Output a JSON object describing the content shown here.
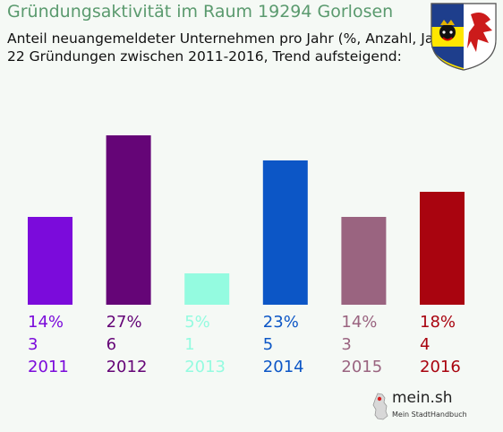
{
  "header": {
    "title": "Gründungsaktivität im Raum 19294 Gorlosen",
    "subtitle_line1": "Anteil neuangemeldeter Unternehmen pro Jahr (%, Anzahl, Jahr)",
    "subtitle_line2": "22 Gründungen zwischen 2011-2016, Trend aufsteigend:"
  },
  "crest": {
    "icon": "mecklenburg-vorpommern-coat-of-arms"
  },
  "chart_data": {
    "type": "bar",
    "categories": [
      "2011",
      "2012",
      "2013",
      "2014",
      "2015",
      "2016"
    ],
    "values": [
      14,
      27,
      5,
      23,
      14,
      18
    ],
    "counts": [
      3,
      6,
      1,
      5,
      3,
      4
    ],
    "value_labels": [
      "14%",
      "27%",
      "5%",
      "23%",
      "14%",
      "18%"
    ],
    "count_labels": [
      "3",
      "6",
      "1",
      "5",
      "3",
      "4"
    ],
    "colors": [
      "#7b0bdb",
      "#650577",
      "#94fbe0",
      "#0c56c6",
      "#9a6480",
      "#a9040f"
    ],
    "ylim": [
      0,
      30
    ],
    "grid": false
  },
  "logo": {
    "text": "mein.sh",
    "tagline": "Mein StadtHandbuch"
  }
}
